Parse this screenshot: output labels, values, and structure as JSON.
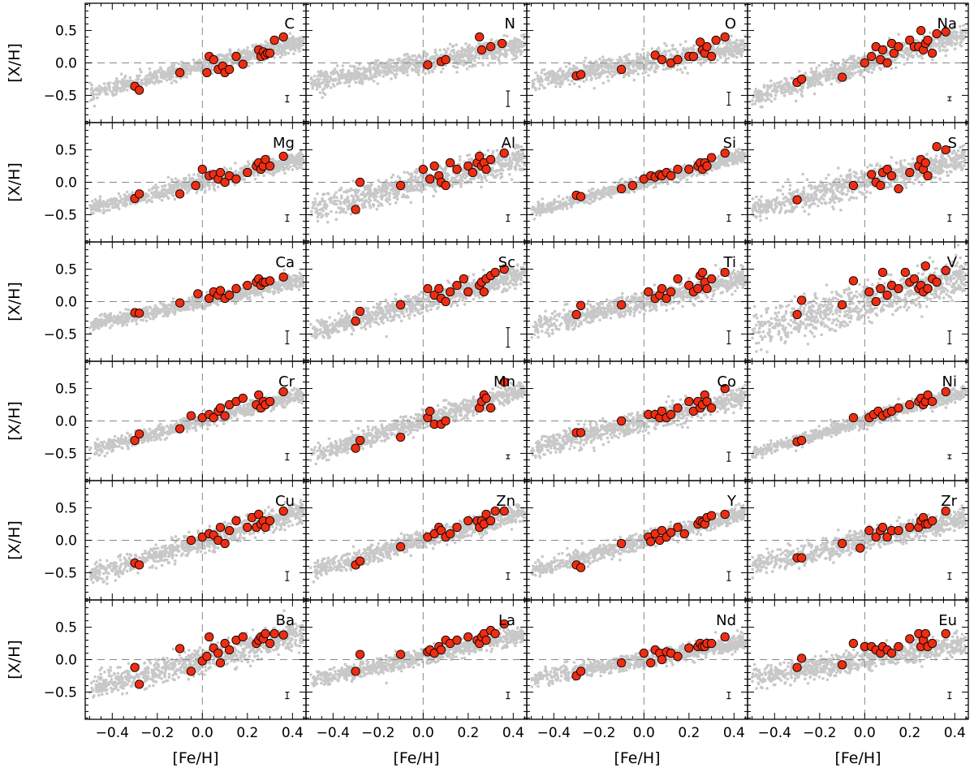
{
  "figure": {
    "y_axis_label": "[X/H]",
    "x_axis_label": "[Fe/H]",
    "x_tick_labels": [
      "−0.4",
      "−0.2",
      "0.0",
      "0.2",
      "0.4"
    ],
    "y_tick_labels": [
      "0.5",
      "0.0",
      "−0.5"
    ]
  },
  "colors": {
    "background_points": "#c8c8c8",
    "sample_points": "#ee2d12",
    "sample_outline": "#000000",
    "reference_lines": "#888888"
  },
  "chart_data": {
    "type": "scatter",
    "layout": "6 rows x 4 columns of panels, shared axes",
    "xlim": [
      -0.52,
      0.46
    ],
    "ylim": [
      -0.92,
      0.92
    ],
    "xticks": [
      -0.4,
      -0.2,
      0.0,
      0.2,
      0.4
    ],
    "yticks": [
      0.5,
      0.0,
      -0.5
    ],
    "reference_lines": {
      "x": 0.0,
      "y": 0.0,
      "style": "dashed"
    },
    "series_description": [
      "grey: comparison sample (dense cloud)",
      "red: program stars"
    ],
    "panels": [
      {
        "element": "C",
        "slope": 0.85,
        "offset": -0.05,
        "scatter": 0.06,
        "err": 0.05,
        "x": [
          -0.3,
          -0.28,
          -0.1,
          0.02,
          0.03,
          0.05,
          0.07,
          0.09,
          0.1,
          0.12,
          0.15,
          0.18,
          0.25,
          0.26,
          0.27,
          0.28,
          0.29,
          0.3,
          0.32,
          0.36
        ],
        "y": [
          -0.36,
          -0.42,
          -0.15,
          -0.15,
          0.1,
          0.05,
          -0.1,
          -0.05,
          -0.15,
          -0.1,
          0.1,
          -0.02,
          0.2,
          0.1,
          0.17,
          0.12,
          0.15,
          0.15,
          0.35,
          0.4
        ]
      },
      {
        "element": "N",
        "slope": 0.6,
        "offset": 0.0,
        "scatter": 0.08,
        "err": 0.12,
        "x": [
          0.02,
          0.08,
          0.1,
          0.25,
          0.26,
          0.3,
          0.35
        ],
        "y": [
          -0.03,
          0.02,
          0.05,
          0.4,
          0.2,
          0.25,
          0.3
        ]
      },
      {
        "element": "O",
        "slope": 0.55,
        "offset": 0.0,
        "scatter": 0.08,
        "err": 0.1,
        "x": [
          -0.3,
          -0.28,
          -0.1,
          0.05,
          0.08,
          0.12,
          0.15,
          0.2,
          0.22,
          0.25,
          0.26,
          0.27,
          0.28,
          0.3,
          0.32,
          0.36
        ],
        "y": [
          -0.2,
          -0.18,
          -0.1,
          0.12,
          0.05,
          0.0,
          0.05,
          0.1,
          0.1,
          0.32,
          0.2,
          0.15,
          0.25,
          0.1,
          0.35,
          0.4
        ]
      },
      {
        "element": "Na",
        "slope": 1.05,
        "offset": -0.02,
        "scatter": 0.08,
        "err": 0.03,
        "x": [
          -0.3,
          -0.28,
          -0.1,
          0.0,
          0.03,
          0.05,
          0.07,
          0.08,
          0.1,
          0.12,
          0.13,
          0.15,
          0.2,
          0.22,
          0.24,
          0.25,
          0.26,
          0.27,
          0.28,
          0.3,
          0.32,
          0.36
        ],
        "y": [
          -0.3,
          -0.25,
          -0.22,
          0.0,
          0.1,
          0.25,
          0.05,
          0.2,
          0.0,
          0.3,
          0.15,
          0.25,
          0.35,
          0.25,
          0.25,
          0.5,
          0.2,
          0.3,
          0.35,
          0.15,
          0.45,
          0.48
        ]
      },
      {
        "element": "Mg",
        "slope": 0.8,
        "offset": 0.0,
        "scatter": 0.06,
        "err": 0.05,
        "x": [
          -0.3,
          -0.28,
          -0.1,
          -0.03,
          0.0,
          0.03,
          0.05,
          0.07,
          0.08,
          0.1,
          0.12,
          0.15,
          0.2,
          0.24,
          0.25,
          0.26,
          0.27,
          0.28,
          0.3,
          0.36
        ],
        "y": [
          -0.25,
          -0.18,
          -0.18,
          -0.05,
          0.2,
          0.1,
          0.12,
          0.05,
          0.15,
          0.0,
          0.1,
          0.05,
          0.15,
          0.25,
          0.3,
          0.2,
          0.25,
          0.35,
          0.25,
          0.4
        ]
      },
      {
        "element": "Al",
        "slope": 0.85,
        "offset": 0.0,
        "scatter": 0.1,
        "err": 0.05,
        "x": [
          -0.3,
          -0.28,
          -0.1,
          0.0,
          0.03,
          0.05,
          0.07,
          0.08,
          0.1,
          0.12,
          0.15,
          0.2,
          0.22,
          0.24,
          0.25,
          0.26,
          0.27,
          0.28,
          0.3,
          0.36
        ],
        "y": [
          -0.42,
          0.0,
          -0.05,
          0.2,
          0.05,
          0.25,
          0.1,
          0.0,
          -0.05,
          0.3,
          0.2,
          0.25,
          0.15,
          0.3,
          0.4,
          0.25,
          0.3,
          0.2,
          0.35,
          0.45
        ]
      },
      {
        "element": "Si",
        "slope": 0.9,
        "offset": 0.0,
        "scatter": 0.05,
        "err": 0.05,
        "x": [
          -0.3,
          -0.28,
          -0.1,
          -0.05,
          0.0,
          0.03,
          0.05,
          0.07,
          0.08,
          0.1,
          0.12,
          0.15,
          0.2,
          0.24,
          0.25,
          0.26,
          0.27,
          0.28,
          0.3,
          0.36
        ],
        "y": [
          -0.2,
          -0.22,
          -0.1,
          -0.05,
          0.05,
          0.1,
          0.08,
          0.12,
          0.1,
          0.15,
          0.1,
          0.2,
          0.2,
          0.25,
          0.3,
          0.2,
          0.3,
          0.25,
          0.38,
          0.45
        ]
      },
      {
        "element": "S",
        "slope": 0.85,
        "offset": 0.0,
        "scatter": 0.1,
        "err": 0.05,
        "x": [
          -0.3,
          -0.05,
          0.03,
          0.05,
          0.07,
          0.08,
          0.1,
          0.12,
          0.15,
          0.2,
          0.24,
          0.25,
          0.26,
          0.27,
          0.28,
          0.32,
          0.36
        ],
        "y": [
          -0.27,
          -0.05,
          0.12,
          0.0,
          -0.05,
          0.15,
          0.2,
          0.1,
          -0.1,
          0.15,
          0.25,
          0.35,
          0.2,
          0.3,
          0.1,
          0.55,
          0.5
        ]
      },
      {
        "element": "Ca",
        "slope": 0.75,
        "offset": 0.0,
        "scatter": 0.05,
        "err": 0.1,
        "x": [
          -0.3,
          -0.28,
          -0.1,
          -0.02,
          0.03,
          0.05,
          0.07,
          0.08,
          0.1,
          0.12,
          0.15,
          0.2,
          0.24,
          0.25,
          0.26,
          0.27,
          0.28,
          0.3,
          0.36
        ],
        "y": [
          -0.17,
          -0.18,
          -0.02,
          0.12,
          0.05,
          0.15,
          0.1,
          0.17,
          0.05,
          0.1,
          0.2,
          0.25,
          0.3,
          0.35,
          0.25,
          0.3,
          0.3,
          0.32,
          0.38
        ]
      },
      {
        "element": "Sc",
        "slope": 0.95,
        "offset": 0.0,
        "scatter": 0.08,
        "err": 0.15,
        "x": [
          -0.3,
          -0.28,
          -0.1,
          0.02,
          0.05,
          0.07,
          0.08,
          0.1,
          0.12,
          0.15,
          0.18,
          0.2,
          0.25,
          0.26,
          0.27,
          0.28,
          0.3,
          0.32,
          0.36
        ],
        "y": [
          -0.3,
          -0.15,
          -0.05,
          0.2,
          0.1,
          0.2,
          0.05,
          0.0,
          0.15,
          0.25,
          0.35,
          0.15,
          0.25,
          0.3,
          0.15,
          0.35,
          0.4,
          0.45,
          0.5
        ]
      },
      {
        "element": "Ti",
        "slope": 0.8,
        "offset": 0.0,
        "scatter": 0.08,
        "err": 0.1,
        "x": [
          -0.3,
          -0.28,
          -0.1,
          0.02,
          0.05,
          0.07,
          0.08,
          0.1,
          0.12,
          0.15,
          0.2,
          0.22,
          0.24,
          0.25,
          0.26,
          0.27,
          0.28,
          0.3,
          0.36
        ],
        "y": [
          -0.2,
          -0.06,
          -0.05,
          0.15,
          0.05,
          0.1,
          0.2,
          0.05,
          0.15,
          0.35,
          0.25,
          0.15,
          0.2,
          0.4,
          0.45,
          0.3,
          0.2,
          0.35,
          0.45
        ]
      },
      {
        "element": "V",
        "slope": 0.9,
        "offset": 0.0,
        "scatter": 0.15,
        "err": 0.1,
        "x": [
          -0.3,
          -0.28,
          -0.1,
          -0.05,
          0.02,
          0.05,
          0.07,
          0.08,
          0.1,
          0.12,
          0.15,
          0.18,
          0.2,
          0.22,
          0.24,
          0.25,
          0.26,
          0.27,
          0.28,
          0.3,
          0.32,
          0.36
        ],
        "y": [
          -0.2,
          0.02,
          -0.05,
          0.32,
          0.15,
          0.0,
          0.2,
          0.45,
          0.1,
          0.25,
          0.2,
          0.45,
          0.3,
          0.35,
          0.2,
          0.25,
          0.15,
          0.55,
          0.2,
          0.35,
          0.3,
          0.48
        ]
      },
      {
        "element": "Cr",
        "slope": 0.9,
        "offset": 0.0,
        "scatter": 0.05,
        "err": 0.05,
        "x": [
          -0.3,
          -0.28,
          -0.1,
          -0.05,
          0.0,
          0.03,
          0.05,
          0.07,
          0.08,
          0.1,
          0.12,
          0.15,
          0.18,
          0.24,
          0.25,
          0.26,
          0.27,
          0.28,
          0.3,
          0.36
        ],
        "y": [
          -0.3,
          -0.2,
          -0.12,
          0.08,
          0.05,
          0.1,
          0.05,
          0.15,
          0.2,
          0.08,
          0.25,
          0.3,
          0.35,
          0.25,
          0.4,
          0.2,
          0.3,
          0.25,
          0.3,
          0.45
        ]
      },
      {
        "element": "Mn",
        "slope": 1.05,
        "offset": 0.0,
        "scatter": 0.07,
        "err": 0.03,
        "x": [
          -0.3,
          -0.28,
          -0.1,
          0.02,
          0.03,
          0.05,
          0.08,
          0.1,
          0.25,
          0.26,
          0.27,
          0.28,
          0.3,
          0.36
        ],
        "y": [
          -0.42,
          -0.3,
          -0.25,
          0.05,
          0.15,
          -0.05,
          -0.05,
          0.0,
          0.2,
          0.3,
          0.4,
          0.35,
          0.2,
          0.6
        ]
      },
      {
        "element": "Co",
        "slope": 0.85,
        "offset": 0.0,
        "scatter": 0.08,
        "err": 0.07,
        "x": [
          -0.3,
          -0.28,
          -0.1,
          0.02,
          0.05,
          0.07,
          0.08,
          0.1,
          0.12,
          0.15,
          0.2,
          0.22,
          0.24,
          0.25,
          0.26,
          0.27,
          0.28,
          0.3,
          0.36
        ],
        "y": [
          -0.18,
          -0.18,
          0.0,
          0.1,
          0.1,
          0.05,
          0.15,
          0.05,
          0.1,
          0.2,
          0.3,
          0.15,
          0.3,
          0.2,
          0.25,
          0.4,
          0.3,
          0.2,
          0.5
        ]
      },
      {
        "element": "Ni",
        "slope": 1.0,
        "offset": 0.0,
        "scatter": 0.05,
        "err": 0.03,
        "x": [
          -0.3,
          -0.28,
          -0.05,
          0.02,
          0.04,
          0.06,
          0.08,
          0.1,
          0.12,
          0.15,
          0.2,
          0.24,
          0.25,
          0.26,
          0.27,
          0.28,
          0.3,
          0.36
        ],
        "y": [
          -0.32,
          -0.3,
          0.05,
          0.05,
          0.1,
          0.15,
          0.08,
          0.12,
          0.15,
          0.2,
          0.25,
          0.3,
          0.35,
          0.25,
          0.3,
          0.4,
          0.3,
          0.45
        ]
      },
      {
        "element": "Cu",
        "slope": 1.05,
        "offset": -0.02,
        "scatter": 0.08,
        "err": 0.07,
        "x": [
          -0.3,
          -0.28,
          -0.05,
          0.0,
          0.03,
          0.05,
          0.07,
          0.08,
          0.1,
          0.12,
          0.15,
          0.2,
          0.22,
          0.24,
          0.25,
          0.26,
          0.27,
          0.28,
          0.3,
          0.36
        ],
        "y": [
          -0.35,
          -0.38,
          0.0,
          0.05,
          0.1,
          0.08,
          0.0,
          0.2,
          -0.05,
          0.15,
          0.3,
          0.2,
          0.35,
          0.2,
          0.4,
          0.25,
          0.3,
          0.2,
          0.3,
          0.45
        ]
      },
      {
        "element": "Zn",
        "slope": 0.95,
        "offset": 0.0,
        "scatter": 0.07,
        "err": 0.05,
        "x": [
          -0.3,
          -0.28,
          -0.1,
          0.02,
          0.05,
          0.07,
          0.08,
          0.1,
          0.12,
          0.15,
          0.2,
          0.24,
          0.25,
          0.26,
          0.27,
          0.28,
          0.3,
          0.32,
          0.36
        ],
        "y": [
          -0.38,
          -0.32,
          -0.1,
          0.05,
          0.1,
          0.2,
          0.15,
          0.05,
          0.1,
          0.2,
          0.3,
          0.3,
          0.2,
          0.3,
          0.25,
          0.4,
          0.3,
          0.45,
          0.45
        ]
      },
      {
        "element": "Y",
        "slope": 0.95,
        "offset": 0.0,
        "scatter": 0.06,
        "err": 0.07,
        "x": [
          -0.3,
          -0.28,
          -0.1,
          0.02,
          0.03,
          0.05,
          0.07,
          0.08,
          0.1,
          0.12,
          0.15,
          0.18,
          0.24,
          0.25,
          0.26,
          0.27,
          0.28,
          0.3,
          0.36
        ],
        "y": [
          -0.38,
          -0.42,
          -0.05,
          0.05,
          -0.02,
          0.1,
          0.0,
          0.15,
          0.05,
          0.12,
          0.2,
          0.1,
          0.25,
          0.3,
          0.28,
          0.25,
          0.35,
          0.38,
          0.4
        ]
      },
      {
        "element": "Zr",
        "slope": 0.8,
        "offset": 0.0,
        "scatter": 0.08,
        "err": 0.05,
        "x": [
          -0.3,
          -0.28,
          -0.1,
          -0.02,
          0.02,
          0.05,
          0.07,
          0.08,
          0.1,
          0.12,
          0.15,
          0.2,
          0.24,
          0.25,
          0.26,
          0.27,
          0.28,
          0.3,
          0.36
        ],
        "y": [
          -0.27,
          -0.27,
          -0.05,
          -0.12,
          0.15,
          0.05,
          0.15,
          0.2,
          0.05,
          0.15,
          0.15,
          0.2,
          0.2,
          0.3,
          0.35,
          0.25,
          0.25,
          0.3,
          0.45
        ]
      },
      {
        "element": "Ba",
        "slope": 0.9,
        "offset": 0.0,
        "scatter": 0.1,
        "err": 0.05,
        "x": [
          -0.3,
          -0.28,
          -0.1,
          -0.05,
          0.0,
          0.02,
          0.03,
          0.05,
          0.07,
          0.08,
          0.1,
          0.12,
          0.15,
          0.18,
          0.24,
          0.25,
          0.26,
          0.27,
          0.28,
          0.3,
          0.32,
          0.36
        ],
        "y": [
          -0.12,
          -0.38,
          0.17,
          -0.18,
          -0.02,
          0.05,
          0.35,
          0.18,
          0.1,
          -0.05,
          0.25,
          0.15,
          0.3,
          0.35,
          0.25,
          0.3,
          0.35,
          0.32,
          0.4,
          0.25,
          0.4,
          0.38
        ]
      },
      {
        "element": "La",
        "slope": 0.75,
        "offset": 0.05,
        "scatter": 0.06,
        "err": 0.05,
        "x": [
          -0.3,
          -0.28,
          -0.1,
          0.02,
          0.03,
          0.05,
          0.07,
          0.08,
          0.1,
          0.12,
          0.15,
          0.2,
          0.24,
          0.25,
          0.26,
          0.27,
          0.28,
          0.3,
          0.32,
          0.36
        ],
        "y": [
          -0.18,
          0.08,
          0.08,
          0.12,
          0.15,
          0.1,
          0.2,
          0.15,
          0.3,
          0.25,
          0.3,
          0.35,
          0.3,
          0.25,
          0.35,
          0.4,
          0.3,
          0.45,
          0.4,
          0.55
        ]
      },
      {
        "element": "Nd",
        "slope": 0.6,
        "offset": 0.0,
        "scatter": 0.06,
        "err": 0.05,
        "x": [
          -0.3,
          -0.28,
          -0.1,
          0.0,
          0.03,
          0.05,
          0.07,
          0.08,
          0.1,
          0.12,
          0.15,
          0.2,
          0.24,
          0.25,
          0.26,
          0.27,
          0.28,
          0.3,
          0.36
        ],
        "y": [
          -0.25,
          -0.18,
          -0.05,
          0.1,
          -0.05,
          0.15,
          0.1,
          0.0,
          0.12,
          0.1,
          0.05,
          0.18,
          0.2,
          0.25,
          0.2,
          0.2,
          0.25,
          0.25,
          0.35
        ]
      },
      {
        "element": "Eu",
        "slope": 0.55,
        "offset": 0.0,
        "scatter": 0.08,
        "err": 0.05,
        "x": [
          -0.3,
          -0.28,
          -0.1,
          -0.05,
          0.0,
          0.03,
          0.05,
          0.07,
          0.08,
          0.1,
          0.12,
          0.15,
          0.2,
          0.24,
          0.25,
          0.26,
          0.27,
          0.28,
          0.3,
          0.36
        ],
        "y": [
          -0.12,
          0.02,
          -0.08,
          0.25,
          0.2,
          0.2,
          0.15,
          0.1,
          0.2,
          0.15,
          0.1,
          0.2,
          0.32,
          0.4,
          0.2,
          0.3,
          0.4,
          0.2,
          0.25,
          0.4
        ]
      }
    ]
  }
}
